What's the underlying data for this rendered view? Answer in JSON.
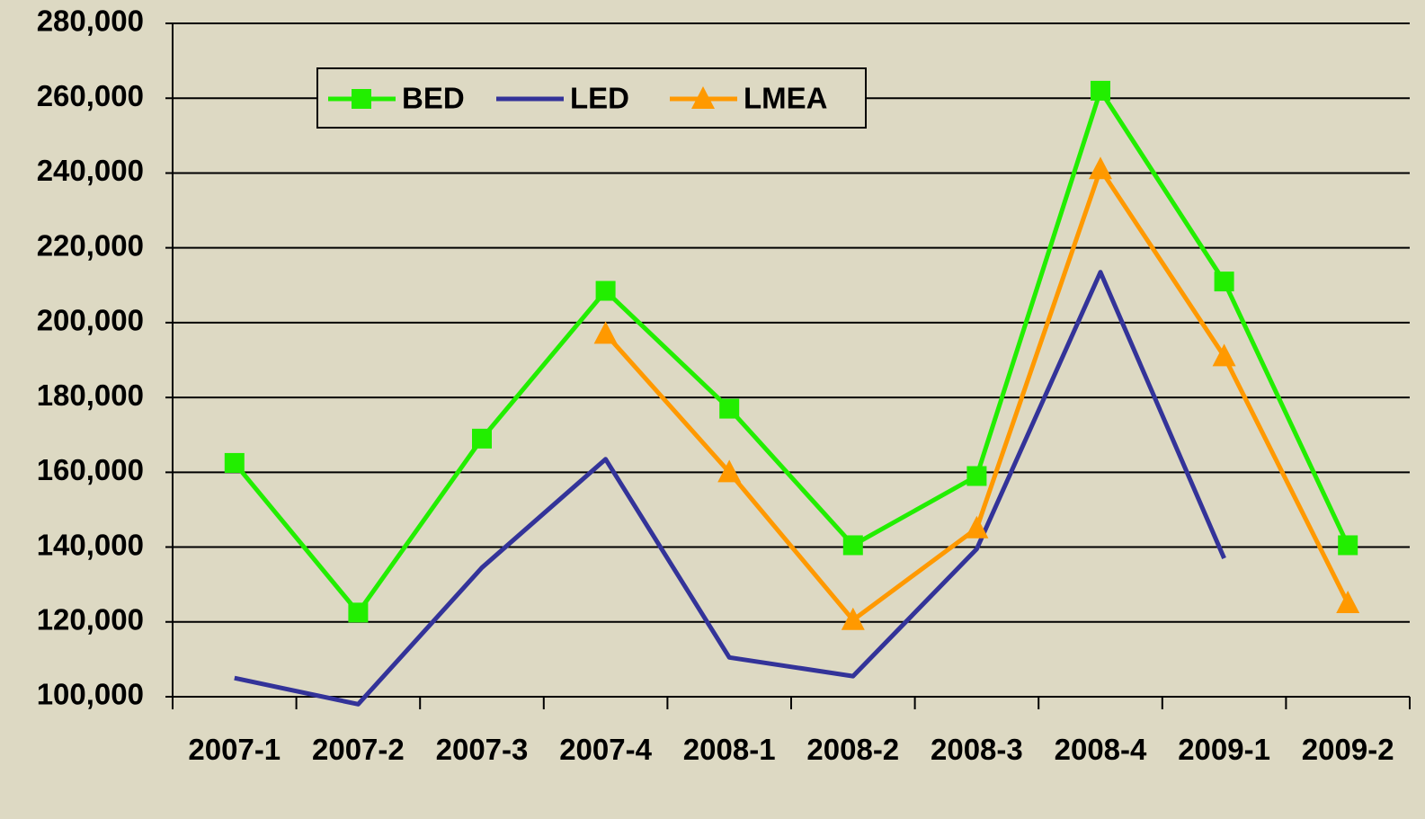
{
  "chart_data": {
    "type": "line",
    "categories": [
      "2007-1",
      "2007-2",
      "2007-3",
      "2007-4",
      "2008-1",
      "2008-2",
      "2008-3",
      "2008-4",
      "2009-1",
      "2009-2"
    ],
    "series": [
      {
        "name": "BED",
        "color": "#22ee00",
        "marker": "square",
        "values": [
          162500,
          122500,
          169000,
          208500,
          177000,
          140500,
          159000,
          262000,
          211000,
          140500
        ]
      },
      {
        "name": "LED",
        "color": "#333399",
        "marker": "none",
        "values": [
          105000,
          98000,
          134500,
          163500,
          110500,
          105500,
          139500,
          213500,
          137000,
          null
        ]
      },
      {
        "name": "LMEA",
        "color": "#ff9900",
        "marker": "triangle",
        "values": [
          null,
          null,
          null,
          197000,
          160000,
          120500,
          145000,
          241000,
          191000,
          125000
        ]
      }
    ],
    "ylim": [
      100000,
      280000
    ],
    "yticks": [
      {
        "value": 100000,
        "label": "100,000"
      },
      {
        "value": 120000,
        "label": "120,000"
      },
      {
        "value": 140000,
        "label": "140,000"
      },
      {
        "value": 160000,
        "label": "160,000"
      },
      {
        "value": 180000,
        "label": "180,000"
      },
      {
        "value": 200000,
        "label": "200,000"
      },
      {
        "value": 220000,
        "label": "220,000"
      },
      {
        "value": 240000,
        "label": "240,000"
      },
      {
        "value": 260000,
        "label": "260,000"
      },
      {
        "value": 280000,
        "label": "280,000"
      }
    ],
    "grid": true,
    "legend": "top-left"
  }
}
